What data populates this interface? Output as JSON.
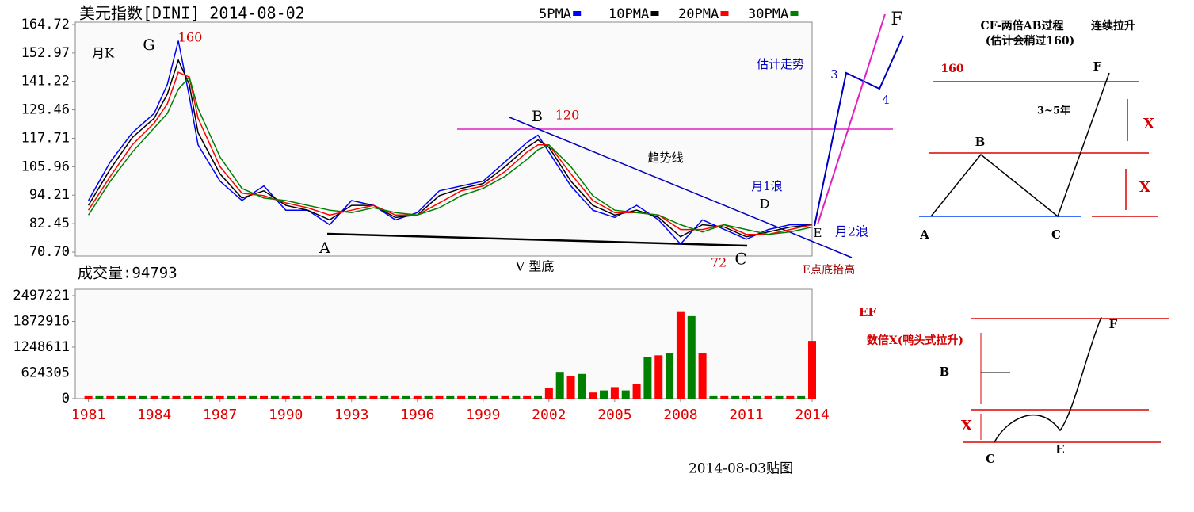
{
  "chart_data": [
    {
      "type": "line",
      "title": "美元指数[DINI] 2014-08-02",
      "x": [
        1981,
        1982,
        1983,
        1984,
        1984.6,
        1985.1,
        1985.6,
        1986,
        1987,
        1988,
        1989,
        1990,
        1991,
        1992,
        1993,
        1994,
        1995,
        1996,
        1997,
        1998,
        1999,
        2000,
        2001,
        2001.5,
        2002,
        2003,
        2004,
        2005,
        2006,
        2007,
        2008,
        2009,
        2010,
        2011,
        2012,
        2013,
        2014
      ],
      "series": [
        {
          "name": "5PMA",
          "color": "#0000ff",
          "values": [
            92,
            108,
            120,
            128,
            140,
            158,
            135,
            115,
            100,
            92,
            98,
            88,
            88,
            82,
            92,
            90,
            84,
            87,
            96,
            98,
            100,
            108,
            116,
            119,
            112,
            98,
            88,
            85,
            90,
            84,
            74,
            84,
            80,
            76,
            80,
            82,
            82
          ]
        },
        {
          "name": "10PMA",
          "color": "#000000",
          "values": [
            90,
            105,
            118,
            126,
            136,
            150,
            140,
            120,
            103,
            93,
            96,
            90,
            88,
            84,
            90,
            90,
            85,
            86,
            94,
            97,
            99,
            106,
            114,
            117,
            114,
            100,
            90,
            86,
            88,
            85,
            77,
            82,
            81,
            77,
            79,
            81,
            82
          ]
        },
        {
          "name": "20PMA",
          "color": "#ff0000",
          "values": [
            88,
            102,
            115,
            124,
            132,
            145,
            143,
            126,
            106,
            95,
            94,
            91,
            89,
            86,
            88,
            90,
            86,
            86,
            91,
            96,
            98,
            104,
            112,
            115,
            115,
            103,
            92,
            87,
            87,
            86,
            80,
            80,
            82,
            78,
            78,
            80,
            82
          ]
        },
        {
          "name": "30PMA",
          "color": "#008000",
          "values": [
            86,
            100,
            112,
            122,
            128,
            138,
            143,
            130,
            110,
            97,
            93,
            92,
            90,
            88,
            87,
            89,
            87,
            86,
            89,
            94,
            97,
            102,
            109,
            113,
            115,
            106,
            94,
            88,
            87,
            86,
            82,
            79,
            82,
            80,
            78,
            79,
            81
          ]
        }
      ],
      "xlim": [
        1980.4,
        2014
      ],
      "ylim": [
        70.7,
        164.72
      ],
      "yticks": [
        164.72,
        152.97,
        141.22,
        129.46,
        117.71,
        105.96,
        94.21,
        82.45,
        {
          "value": 70.7,
          "label": "70.70"
        }
      ],
      "annotations": [
        "月K",
        "G",
        160,
        "A",
        "B",
        120,
        "趋势线",
        "月1浪",
        "D",
        "E",
        "月2浪",
        "C",
        72,
        "V 型底",
        "E点底抬高",
        "估计走势",
        3,
        4,
        "F"
      ]
    },
    {
      "type": "bar",
      "title": "成交量:94793",
      "x": [
        1981,
        1981.5,
        1982,
        1982.5,
        1983,
        1983.5,
        1984,
        1984.5,
        1985,
        1985.5,
        1986,
        1986.5,
        1987,
        1987.5,
        1988,
        1988.5,
        1989,
        1989.5,
        1990,
        1990.5,
        1991,
        1991.5,
        1992,
        1992.5,
        1993,
        1993.5,
        1994,
        1994.5,
        1995,
        1995.5,
        1996,
        1996.5,
        1997,
        1997.5,
        1998,
        1998.5,
        1999,
        1999.5,
        2000,
        2000.5,
        2001,
        2001.5,
        2002,
        2002.5,
        2003,
        2003.5,
        2004,
        2004.5,
        2005,
        2005.5,
        2006,
        2006.5,
        2007,
        2007.5,
        2008,
        2008.5,
        2009,
        2009.5,
        2010,
        2010.5,
        2011,
        2011.5,
        2012,
        2012.5,
        2013,
        2013.5,
        2014
      ],
      "values": [
        60000,
        60000,
        60000,
        60000,
        60000,
        60000,
        60000,
        60000,
        60000,
        60000,
        60000,
        60000,
        60000,
        60000,
        60000,
        60000,
        60000,
        60000,
        60000,
        60000,
        60000,
        60000,
        60000,
        60000,
        60000,
        60000,
        60000,
        60000,
        60000,
        60000,
        60000,
        60000,
        60000,
        60000,
        60000,
        60000,
        60000,
        60000,
        60000,
        60000,
        60000,
        60000,
        250000,
        650000,
        550000,
        600000,
        150000,
        200000,
        280000,
        200000,
        350000,
        1000000,
        1050000,
        1100000,
        2100000,
        2000000,
        1100000,
        60000,
        60000,
        60000,
        60000,
        60000,
        60000,
        60000,
        60000,
        60000,
        1400000
      ],
      "colors": [
        "#ff0000",
        "#008000"
      ],
      "xlim": [
        1980.4,
        2014
      ],
      "xticks": [
        1981,
        1984,
        1987,
        1990,
        1993,
        1996,
        1999,
        2002,
        2005,
        2008,
        2011,
        2014
      ],
      "ylim": [
        0,
        2497221
      ],
      "yticks": [
        2497221,
        1872916,
        1248611,
        624305,
        0
      ]
    }
  ],
  "diagrams": [
    {
      "labels": [
        "CF-两倍AB过程",
        "(估计会稍过160)",
        "连续拉升",
        "160",
        "F",
        "3~5年",
        "X",
        "B",
        "X",
        "A",
        "C"
      ]
    },
    {
      "labels": [
        "EF",
        "数倍X(鸭头式拉升)",
        "F",
        "B",
        "X",
        "C",
        "E"
      ]
    }
  ],
  "footer": "2014-08-03贴图"
}
